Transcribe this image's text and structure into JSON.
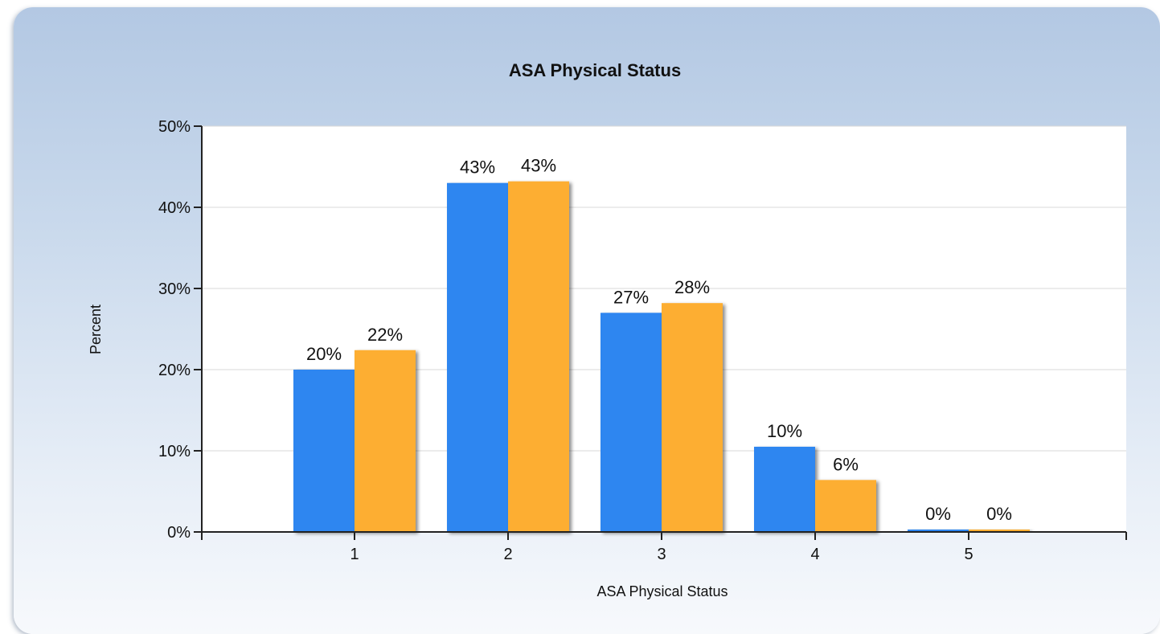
{
  "chart_data": {
    "type": "bar",
    "title": "ASA Physical Status",
    "xlabel": "ASA Physical Status",
    "ylabel": "Percent",
    "categories": [
      "1",
      "2",
      "3",
      "4",
      "5"
    ],
    "series": [
      {
        "values": [
          20,
          43,
          27,
          10.5,
          0.3
        ],
        "color": "#2e86f0"
      },
      {
        "values": [
          22.4,
          43.2,
          28.2,
          6.4,
          0.3
        ],
        "color": "#fdae33"
      }
    ],
    "data_labels": [
      [
        "20%",
        "43%",
        "27%",
        "10%",
        "0%"
      ],
      [
        "22%",
        "43%",
        "28%",
        "6%",
        "0%"
      ]
    ],
    "yticks": [
      "0%",
      "10%",
      "20%",
      "30%",
      "40%",
      "50%"
    ],
    "ylim": [
      0,
      50
    ],
    "grid": true,
    "legend": "none"
  }
}
